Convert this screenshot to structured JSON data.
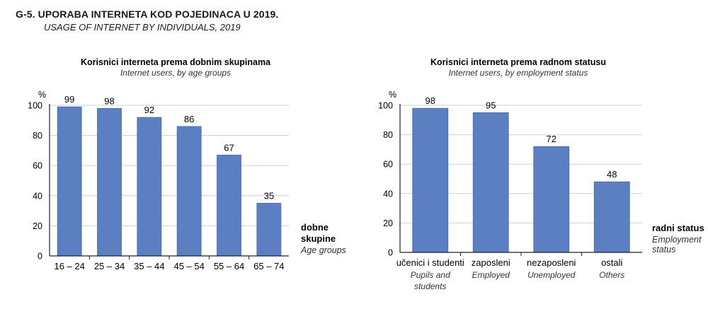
{
  "figure": {
    "title": "G-5.  UPORABA INTERNETA KOD POJEDINACA U 2019.",
    "subtitle": "USAGE OF INTERNET BY INDIVIDUALS, 2019"
  },
  "colors": {
    "bar": "#5b7fc0",
    "bar_edge": "#4a6aa8",
    "grid": "#cfcfcf",
    "axis": "#222222"
  },
  "chart_data": [
    {
      "type": "bar",
      "title": "Korisnici interneta prema dobnim skupinama",
      "subtitle": "Internet users, by age groups",
      "ylabel": "%",
      "xlabel": "dobne skupine",
      "xlabel_lines": [
        "dobne",
        "skupine"
      ],
      "xlabel_en": "Age groups",
      "categories": [
        "16 – 24",
        "25 – 34",
        "35 – 44",
        "45 – 54",
        "55 – 64",
        "65 – 74"
      ],
      "categories_en": [],
      "values": [
        99,
        98,
        92,
        86,
        67,
        35
      ],
      "data_labels": [
        "99",
        "98",
        "92",
        "86",
        "67",
        "35"
      ],
      "ylim": [
        0,
        100
      ],
      "yticks": [
        0,
        20,
        40,
        60,
        80,
        100
      ],
      "ytick_labels": [
        "0",
        "20",
        "40",
        "60",
        "80",
        "100"
      ],
      "grid": true
    },
    {
      "type": "bar",
      "title": "Korisnici interneta prema radnom statusu",
      "subtitle": "Internet users, by employment status",
      "ylabel": "%",
      "xlabel": "radni status",
      "xlabel_lines": [
        "radni status"
      ],
      "xlabel_en": "Employment status",
      "xlabel_en_lines": [
        "Employment",
        "status"
      ],
      "categories": [
        "učenici i studenti",
        "zaposleni",
        "nezaposleni",
        "ostali"
      ],
      "categories_en": [
        [
          "Pupils and",
          "students"
        ],
        [
          "Employed"
        ],
        [
          "Unemployed"
        ],
        [
          "Others"
        ]
      ],
      "values": [
        98,
        95,
        72,
        48
      ],
      "data_labels": [
        "98",
        "95",
        "72",
        "48"
      ],
      "ylim": [
        0,
        100
      ],
      "yticks": [
        0,
        20,
        40,
        60,
        80,
        100
      ],
      "ytick_labels": [
        "0",
        "20",
        "40",
        "60",
        "80",
        "100"
      ],
      "grid": true
    }
  ]
}
